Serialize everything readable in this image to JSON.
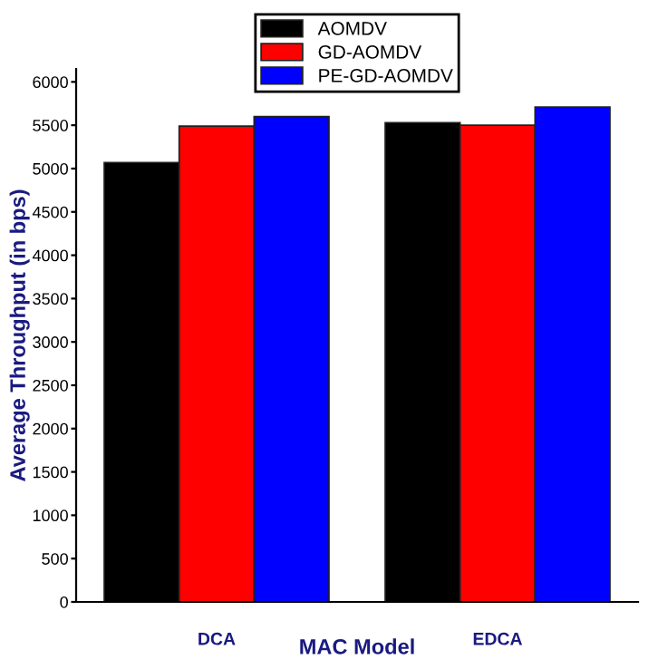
{
  "chart_data": {
    "type": "bar",
    "xlabel": "MAC Model",
    "ylabel": "Average Throughput (in bps)",
    "categories": [
      "DCA",
      "EDCA"
    ],
    "series": [
      {
        "name": "AOMDV",
        "color": "#000000",
        "values": [
          5070,
          5530
        ]
      },
      {
        "name": "GD-AOMDV",
        "color": "#ff0000",
        "values": [
          5490,
          5500
        ]
      },
      {
        "name": "PE-GD-AOMDV",
        "color": "#0000ff",
        "values": [
          5600,
          5710
        ]
      }
    ],
    "ylim": [
      0,
      6150
    ],
    "yticks": [
      0,
      500,
      1000,
      1500,
      2000,
      2500,
      3000,
      3500,
      4000,
      4500,
      5000,
      5500,
      6000
    ],
    "grid": false,
    "legend": "top"
  }
}
